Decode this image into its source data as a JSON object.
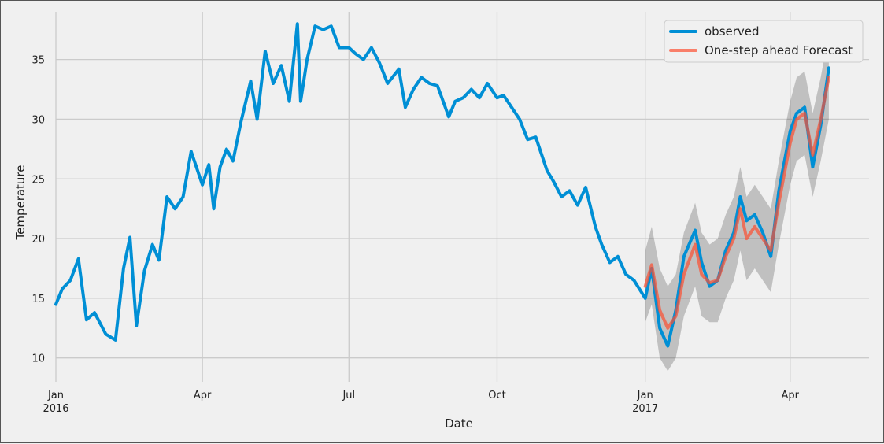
{
  "chart_data": {
    "type": "line",
    "title": "",
    "xlabel": "Date",
    "ylabel": "Temperature",
    "x_range": [
      "2016-01-01",
      "2017-05-20"
    ],
    "ylim": [
      8,
      39
    ],
    "grid": true,
    "legend_position": "top-right",
    "x_ticks": [
      {
        "date": "2016-01-01",
        "label": "Jan",
        "sublabel": "2016"
      },
      {
        "date": "2016-04-01",
        "label": "Apr",
        "sublabel": ""
      },
      {
        "date": "2016-07-01",
        "label": "Jul",
        "sublabel": ""
      },
      {
        "date": "2016-10-01",
        "label": "Oct",
        "sublabel": ""
      },
      {
        "date": "2017-01-01",
        "label": "Jan",
        "sublabel": "2017"
      },
      {
        "date": "2017-04-01",
        "label": "Apr",
        "sublabel": ""
      }
    ],
    "y_ticks": [
      10,
      15,
      20,
      25,
      30,
      35
    ],
    "colors": {
      "observed": "#008fd5",
      "forecast": "#fc4f30",
      "ci": "#a0a0a0",
      "grid": "#cbcbcb",
      "background": "#f0f0f0"
    },
    "series": [
      {
        "name": "observed",
        "x": [
          "2016-01-01",
          "2016-01-05",
          "2016-01-10",
          "2016-01-15",
          "2016-01-20",
          "2016-01-25",
          "2016-02-01",
          "2016-02-07",
          "2016-02-12",
          "2016-02-16",
          "2016-02-20",
          "2016-02-25",
          "2016-03-01",
          "2016-03-05",
          "2016-03-10",
          "2016-03-15",
          "2016-03-20",
          "2016-03-25",
          "2016-04-01",
          "2016-04-05",
          "2016-04-08",
          "2016-04-12",
          "2016-04-16",
          "2016-04-20",
          "2016-04-25",
          "2016-05-01",
          "2016-05-05",
          "2016-05-10",
          "2016-05-15",
          "2016-05-20",
          "2016-05-25",
          "2016-05-30",
          "2016-06-01",
          "2016-06-05",
          "2016-06-10",
          "2016-06-15",
          "2016-06-20",
          "2016-06-25",
          "2016-07-01",
          "2016-07-05",
          "2016-07-10",
          "2016-07-15",
          "2016-07-20",
          "2016-07-25",
          "2016-08-01",
          "2016-08-05",
          "2016-08-10",
          "2016-08-15",
          "2016-08-20",
          "2016-08-25",
          "2016-09-01",
          "2016-09-05",
          "2016-09-10",
          "2016-09-15",
          "2016-09-20",
          "2016-09-25",
          "2016-10-01",
          "2016-10-05",
          "2016-10-10",
          "2016-10-15",
          "2016-10-20",
          "2016-10-25",
          "2016-11-01",
          "2016-11-05",
          "2016-11-10",
          "2016-11-15",
          "2016-11-20",
          "2016-11-25",
          "2016-12-01",
          "2016-12-05",
          "2016-12-10",
          "2016-12-15",
          "2016-12-20",
          "2016-12-25",
          "2017-01-01",
          "2017-01-05",
          "2017-01-10",
          "2017-01-15",
          "2017-01-20",
          "2017-01-25",
          "2017-02-01",
          "2017-02-05",
          "2017-02-10",
          "2017-02-15",
          "2017-02-20",
          "2017-02-25",
          "2017-03-01",
          "2017-03-05",
          "2017-03-10",
          "2017-03-15",
          "2017-03-20",
          "2017-03-25",
          "2017-04-01",
          "2017-04-05",
          "2017-04-10",
          "2017-04-15",
          "2017-04-20",
          "2017-04-25"
        ],
        "values": [
          14.5,
          15.8,
          16.5,
          18.3,
          13.2,
          13.8,
          12.0,
          11.5,
          17.5,
          20.1,
          12.7,
          17.3,
          19.5,
          18.2,
          23.5,
          22.5,
          23.5,
          27.3,
          24.5,
          26.2,
          22.5,
          26.0,
          27.5,
          26.5,
          29.8,
          33.2,
          30.0,
          35.7,
          33.0,
          34.5,
          31.5,
          38.0,
          31.5,
          35.0,
          37.8,
          37.5,
          37.8,
          36.0,
          36.0,
          35.5,
          35.0,
          36.0,
          34.7,
          33.0,
          34.2,
          31.0,
          32.5,
          33.5,
          33.0,
          32.8,
          30.2,
          31.5,
          31.8,
          32.5,
          31.8,
          33.0,
          31.8,
          32.0,
          31.0,
          30.0,
          28.3,
          28.5,
          25.7,
          24.8,
          23.5,
          24.0,
          22.8,
          24.3,
          21.0,
          19.5,
          18.0,
          18.5,
          17.0,
          16.5,
          15.0,
          17.5,
          12.5,
          11.0,
          14.0,
          18.5,
          20.7,
          18.0,
          16.0,
          16.5,
          19.0,
          20.5,
          23.5,
          21.5,
          22.0,
          20.5,
          18.5,
          24.0,
          29.0,
          30.5,
          31.0,
          26.0,
          29.5,
          34.3
        ]
      },
      {
        "name": "One-step ahead Forecast",
        "x": [
          "2017-01-01",
          "2017-01-05",
          "2017-01-10",
          "2017-01-15",
          "2017-01-20",
          "2017-01-25",
          "2017-02-01",
          "2017-02-05",
          "2017-02-10",
          "2017-02-15",
          "2017-02-20",
          "2017-02-25",
          "2017-03-01",
          "2017-03-05",
          "2017-03-10",
          "2017-03-15",
          "2017-03-20",
          "2017-03-25",
          "2017-04-01",
          "2017-04-05",
          "2017-04-10",
          "2017-04-15",
          "2017-04-20",
          "2017-04-25"
        ],
        "values": [
          16.0,
          17.8,
          14.0,
          12.5,
          13.5,
          17.0,
          19.5,
          17.0,
          16.3,
          16.5,
          18.5,
          20.0,
          22.5,
          20.0,
          21.0,
          20.0,
          19.0,
          23.0,
          28.0,
          30.0,
          30.5,
          27.0,
          30.0,
          33.5
        ],
        "ci_lower": [
          13.0,
          14.5,
          10.0,
          8.9,
          10.0,
          13.5,
          16.0,
          13.5,
          13.0,
          13.0,
          15.0,
          16.5,
          19.0,
          16.5,
          17.5,
          16.5,
          15.5,
          19.5,
          24.5,
          26.5,
          27.0,
          23.5,
          26.5,
          30.0
        ],
        "ci_upper": [
          19.0,
          21.0,
          17.5,
          16.0,
          17.0,
          20.5,
          23.0,
          20.5,
          19.5,
          20.0,
          22.0,
          23.5,
          26.0,
          23.5,
          24.5,
          23.5,
          22.5,
          26.5,
          31.5,
          33.5,
          34.0,
          30.5,
          33.5,
          37.2
        ]
      }
    ]
  }
}
